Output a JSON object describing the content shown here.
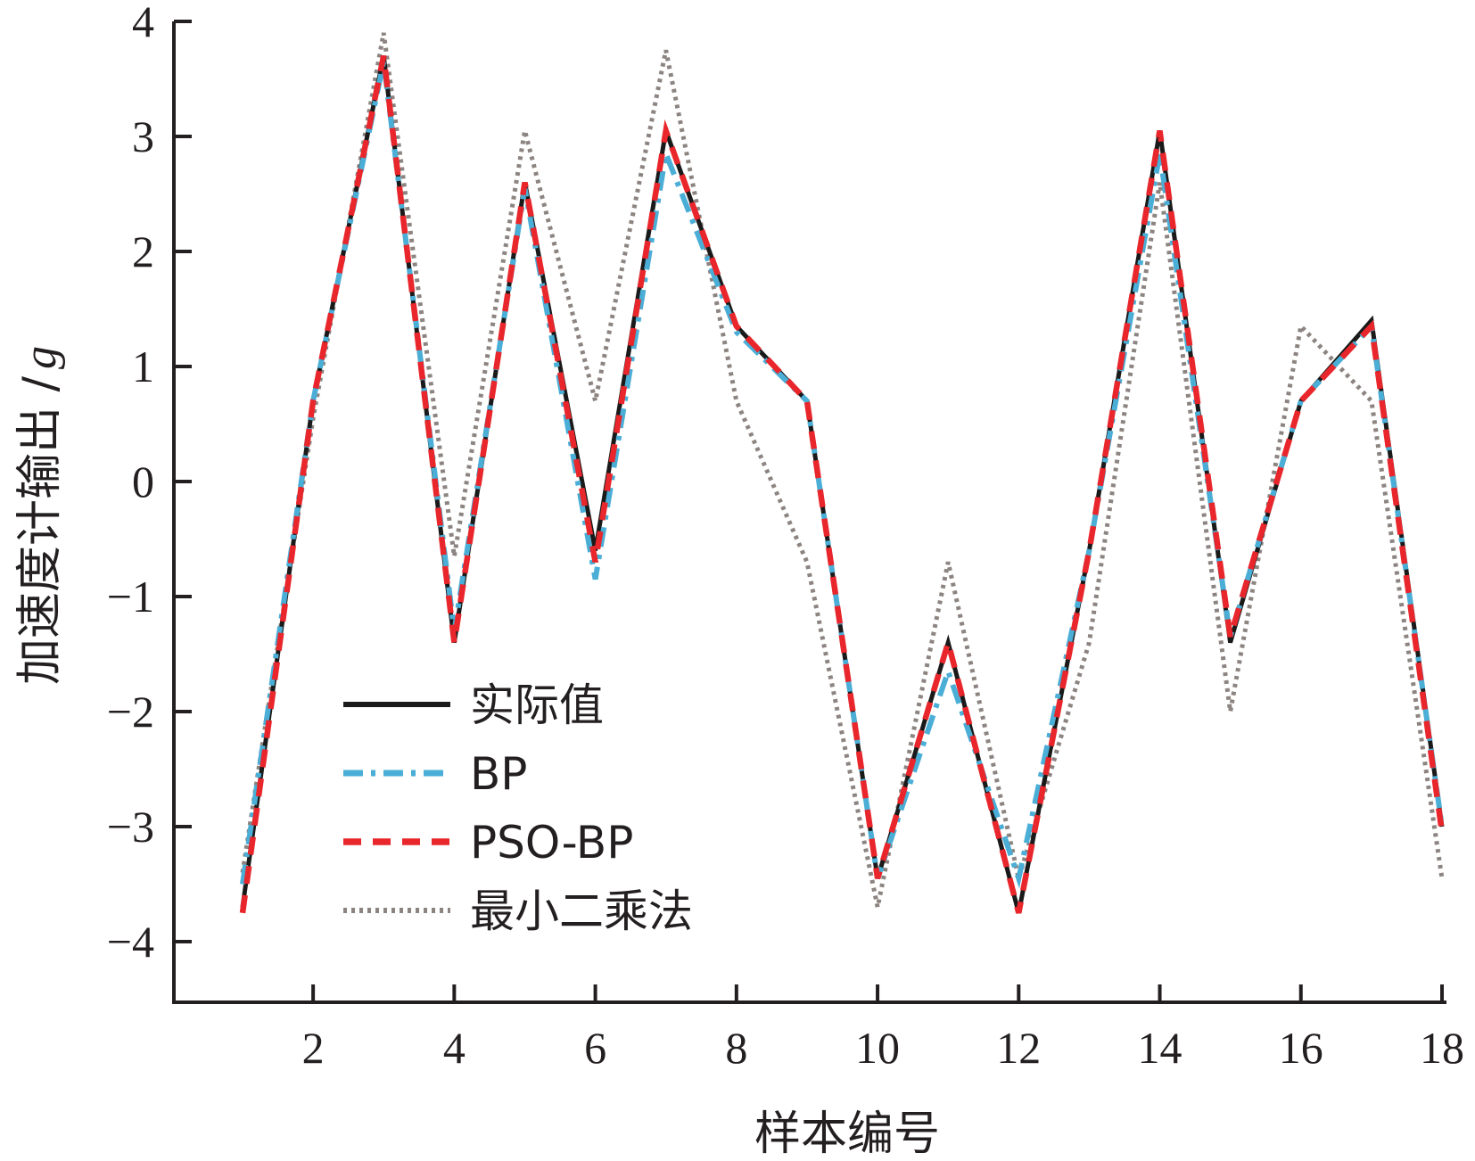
{
  "chart_data": {
    "type": "line",
    "xlabel": "样本编号",
    "ylabel": "加速度计输出 / g",
    "ylabel_text": "加速度计输出 /",
    "ylabel_unit": "g",
    "xlim": [
      1,
      18
    ],
    "ylim": [
      -4.5,
      4
    ],
    "xticks": [
      2,
      4,
      6,
      8,
      10,
      12,
      14,
      16,
      18
    ],
    "yticks": [
      4,
      3,
      2,
      1,
      0,
      -1,
      -2,
      -3,
      -4
    ],
    "ytick_labels": [
      "4",
      "3",
      "2",
      "1",
      "0",
      "−1",
      "−2",
      "−3",
      "−4"
    ],
    "x": [
      1,
      2,
      3,
      4,
      5,
      6,
      7,
      8,
      9,
      10,
      11,
      12,
      13,
      14,
      15,
      16,
      17,
      18
    ],
    "legend_position": "lower-left",
    "grid": false,
    "series": [
      {
        "name": "实际值",
        "color": "#1a1a1a",
        "style": "solid",
        "values": [
          -3.7,
          0.7,
          3.7,
          -1.4,
          2.6,
          -0.6,
          3.05,
          1.35,
          0.7,
          -3.45,
          -1.4,
          -3.75,
          -0.6,
          3.05,
          -1.4,
          0.7,
          1.4,
          -3.0
        ]
      },
      {
        "name": "BP",
        "color": "#4aaed6",
        "style": "dashdot",
        "values": [
          -3.5,
          0.7,
          3.65,
          -1.3,
          2.55,
          -0.85,
          2.85,
          1.3,
          0.7,
          -3.45,
          -1.65,
          -3.45,
          -0.6,
          2.85,
          -1.35,
          0.7,
          1.35,
          -3.0
        ]
      },
      {
        "name": "PSO-BP",
        "color": "#e8262b",
        "style": "dashed",
        "values": [
          -3.75,
          0.7,
          3.7,
          -1.4,
          2.6,
          -0.7,
          3.05,
          1.35,
          0.7,
          -3.45,
          -1.4,
          -3.75,
          -0.6,
          3.05,
          -1.35,
          0.7,
          1.35,
          -3.05
        ]
      },
      {
        "name": "最小二乘法",
        "color": "#8c8481",
        "style": "dotted",
        "values": [
          -3.4,
          0.55,
          3.9,
          -0.65,
          3.05,
          0.7,
          3.75,
          0.7,
          -0.7,
          -3.7,
          -0.7,
          -3.45,
          -1.4,
          2.6,
          -2.0,
          1.35,
          0.7,
          -3.45
        ]
      }
    ]
  }
}
